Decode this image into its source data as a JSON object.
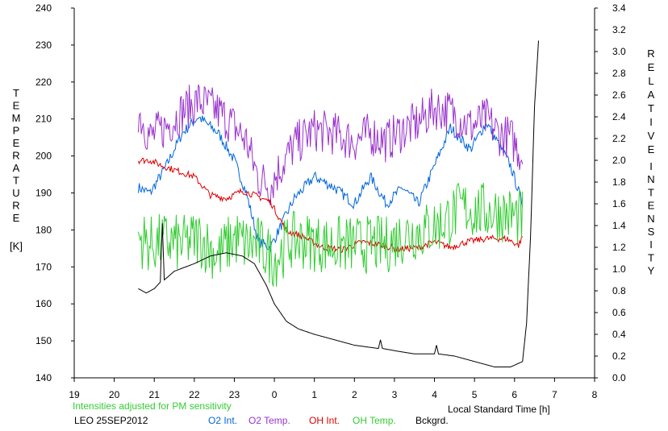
{
  "chart_data": {
    "type": "line",
    "left_axis": {
      "label_letters": [
        "T",
        "E",
        "M",
        "P",
        "E",
        "R",
        "A",
        "T",
        "U",
        "R",
        "E"
      ],
      "unit": "[K]",
      "range": [
        140,
        240
      ],
      "ticks": [
        "140",
        "150",
        "160",
        "170",
        "180",
        "190",
        "200",
        "210",
        "220",
        "230",
        "240"
      ]
    },
    "right_axis": {
      "label_letters": [
        "R",
        "E",
        "L",
        "A",
        "T",
        "I",
        "V",
        "E"
      ],
      "label_letters_2": [
        "I",
        "N",
        "T",
        "E",
        "N",
        "S",
        "I",
        "T",
        "Y"
      ],
      "range": [
        0,
        3.4
      ],
      "ticks": [
        "0.0",
        "0.2",
        "0.4",
        "0.6",
        "0.8",
        "1.0",
        "1.2",
        "1.4",
        "1.6",
        "1.8",
        "2.0",
        "2.2",
        "2.4",
        "2.6",
        "2.8",
        "3.0",
        "3.2",
        "3.4"
      ]
    },
    "x_axis": {
      "label": "Local Standard Time [h]",
      "range": [
        19,
        32
      ],
      "ticks": [
        "19",
        "20",
        "21",
        "22",
        "23",
        "0",
        "1",
        "2",
        "3",
        "4",
        "5",
        "6",
        "7",
        "8"
      ]
    },
    "note": "Intensities adjusted for PM sensitivity",
    "station": "LEO 25SEP2012",
    "series": [
      {
        "name": "O2 Int.",
        "color": "#0066dd",
        "axis": "right",
        "noise": 0.05,
        "x": [
          20.6,
          20.9,
          21.3,
          21.7,
          22.1,
          22.6,
          23.0,
          23.3,
          23.6,
          23.9,
          24.1,
          24.5,
          25.0,
          25.5,
          26.0,
          26.4,
          26.8,
          27.2,
          27.6,
          28.0,
          28.4,
          28.9,
          29.3,
          29.6,
          29.9,
          30.2
        ],
        "y": [
          1.75,
          1.7,
          1.95,
          2.25,
          2.4,
          2.25,
          2.0,
          1.7,
          1.25,
          1.2,
          1.35,
          1.65,
          1.85,
          1.75,
          1.6,
          1.85,
          1.6,
          1.75,
          1.6,
          1.95,
          2.3,
          2.1,
          2.35,
          2.15,
          1.95,
          1.6
        ]
      },
      {
        "name": "O2 Temp.",
        "color": "#9933cc",
        "axis": "left",
        "noise": 6,
        "x": [
          20.6,
          20.9,
          21.3,
          21.7,
          22.1,
          22.6,
          23.0,
          23.3,
          23.6,
          23.9,
          24.1,
          24.5,
          25.0,
          25.5,
          26.0,
          26.4,
          26.8,
          27.2,
          27.6,
          28.0,
          28.4,
          28.9,
          29.3,
          29.6,
          29.9,
          30.2
        ],
        "y": [
          212,
          205,
          208,
          212,
          215,
          212,
          208,
          204,
          194,
          192,
          196,
          203,
          207,
          206,
          204,
          206,
          204,
          207,
          209,
          213,
          212,
          208,
          210,
          206,
          205,
          200
        ]
      },
      {
        "name": "OH Int.",
        "color": "#dd0000",
        "axis": "right",
        "noise": 0.03,
        "x": [
          20.6,
          20.9,
          21.2,
          21.6,
          22.0,
          22.4,
          22.8,
          23.2,
          23.5,
          23.9,
          24.3,
          24.7,
          25.2,
          25.7,
          26.2,
          26.7,
          27.1,
          27.6,
          28.0,
          28.4,
          28.8,
          29.3,
          29.8,
          30.1,
          30.2
        ],
        "y": [
          2.0,
          2.0,
          1.95,
          1.9,
          1.85,
          1.68,
          1.65,
          1.72,
          1.68,
          1.62,
          1.35,
          1.3,
          1.2,
          1.18,
          1.25,
          1.22,
          1.18,
          1.2,
          1.25,
          1.2,
          1.25,
          1.28,
          1.28,
          1.22,
          1.3
        ]
      },
      {
        "name": "OH Temp.",
        "color": "#33cc33",
        "axis": "left",
        "noise": 8,
        "x": [
          20.6,
          20.9,
          21.3,
          21.7,
          22.1,
          22.6,
          23.0,
          23.3,
          23.6,
          24.0,
          24.4,
          24.8,
          25.3,
          25.8,
          26.3,
          26.8,
          27.3,
          27.8,
          28.2,
          28.7,
          29.1,
          29.5,
          29.9,
          30.2
        ],
        "y": [
          178,
          176,
          177,
          176,
          178,
          173,
          178,
          176,
          176,
          172,
          177,
          177,
          176,
          176,
          176,
          176,
          179,
          180,
          182,
          186,
          185,
          185,
          184,
          183
        ]
      },
      {
        "name": "Bckgrd.",
        "color": "#000000",
        "axis": "right",
        "noise": 0.0,
        "x": [
          20.6,
          20.8,
          21.0,
          21.15,
          21.2,
          21.25,
          21.5,
          22.0,
          22.4,
          22.8,
          23.2,
          23.5,
          23.8,
          24.0,
          24.3,
          24.6,
          25.0,
          25.5,
          26.0,
          26.6,
          26.65,
          26.7,
          27.0,
          27.5,
          28.0,
          28.05,
          28.1,
          28.5,
          29.0,
          29.5,
          29.9,
          30.2,
          30.3,
          30.4,
          30.5,
          30.6
        ],
        "y": [
          0.82,
          0.78,
          0.82,
          0.88,
          1.42,
          0.9,
          0.98,
          1.05,
          1.12,
          1.15,
          1.12,
          1.05,
          0.85,
          0.68,
          0.52,
          0.45,
          0.4,
          0.35,
          0.3,
          0.27,
          0.35,
          0.27,
          0.25,
          0.22,
          0.22,
          0.3,
          0.22,
          0.2,
          0.15,
          0.1,
          0.1,
          0.15,
          0.5,
          1.3,
          2.5,
          3.1
        ]
      }
    ]
  }
}
